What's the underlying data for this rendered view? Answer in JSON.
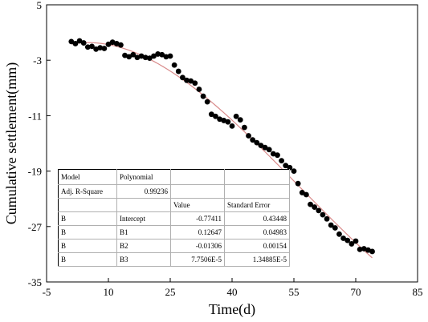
{
  "chart_data": {
    "type": "scatter",
    "xlabel": "Time(d)",
    "ylabel": "Cumulative settlement(mm)",
    "xlim": [
      -5,
      85
    ],
    "ylim": [
      -35,
      5
    ],
    "xticks": [
      "-5",
      "10",
      "25",
      "40",
      "55",
      "70",
      "85"
    ],
    "yticks": [
      "5",
      "-3",
      "-11",
      "-19",
      "-27",
      "-35"
    ],
    "points_x": [
      1,
      2,
      3,
      4,
      5,
      6,
      7,
      8,
      9,
      10,
      11,
      12,
      13,
      14,
      15,
      16,
      17,
      18,
      19,
      20,
      21,
      22,
      23,
      24,
      25,
      26,
      27,
      28,
      29,
      30,
      31,
      32,
      33,
      34,
      35,
      36,
      37,
      38,
      39,
      40,
      41,
      42,
      43,
      44,
      45,
      46,
      47,
      48,
      49,
      50,
      51,
      52,
      53,
      54,
      55,
      56,
      57,
      58,
      59,
      60,
      61,
      62,
      63,
      64,
      65,
      66,
      67,
      68,
      69,
      70,
      71,
      72,
      73,
      74
    ],
    "points_y": [
      -0.3,
      -0.6,
      -0.2,
      -0.5,
      -1.1,
      -1.0,
      -1.4,
      -1.2,
      -1.3,
      -0.7,
      -0.4,
      -0.6,
      -0.8,
      -2.3,
      -2.5,
      -2.2,
      -2.6,
      -2.4,
      -2.6,
      -2.7,
      -2.4,
      -2.1,
      -2.2,
      -2.5,
      -2.4,
      -3.7,
      -4.6,
      -5.5,
      -5.9,
      -6.0,
      -6.3,
      -7.2,
      -8.2,
      -9.0,
      -10.8,
      -11.1,
      -11.5,
      -11.7,
      -11.9,
      -12.5,
      -11.1,
      -11.6,
      -12.7,
      -13.9,
      -14.5,
      -14.9,
      -15.3,
      -15.6,
      -15.9,
      -16.5,
      -16.7,
      -17.5,
      -18.2,
      -18.5,
      -19.0,
      -20.8,
      -22.1,
      -22.4,
      -23.8,
      -24.2,
      -24.7,
      -25.3,
      -25.9,
      -26.8,
      -27.2,
      -28.1,
      -28.7,
      -29.0,
      -29.5,
      -29.1,
      -30.3,
      -30.2,
      -30.4,
      -30.6
    ],
    "fit": {
      "type": "line",
      "color": "#d98b8b",
      "intercept": -0.77411,
      "b1": 0.12647,
      "b2": -0.01306,
      "b3": 7.7506e-05
    },
    "point_color": "#000000",
    "grid": false,
    "table": {
      "model_label": "Model",
      "model_value": "Polynomial",
      "adj_r_label": "Adj. R-Square",
      "adj_r_value": "0.99236",
      "header_value": "Value",
      "header_error": "Standard Error",
      "rows": [
        {
          "b": "B",
          "param": "Intercept",
          "value": "-0.77411",
          "error": "0.43448"
        },
        {
          "b": "B",
          "param": "B1",
          "value": "0.12647",
          "error": "0.04983"
        },
        {
          "b": "B",
          "param": "B2",
          "value": "-0.01306",
          "error": "0.00154"
        },
        {
          "b": "B",
          "param": "B3",
          "value": "7.7506E-5",
          "error": "1.34885E-5"
        }
      ]
    }
  }
}
